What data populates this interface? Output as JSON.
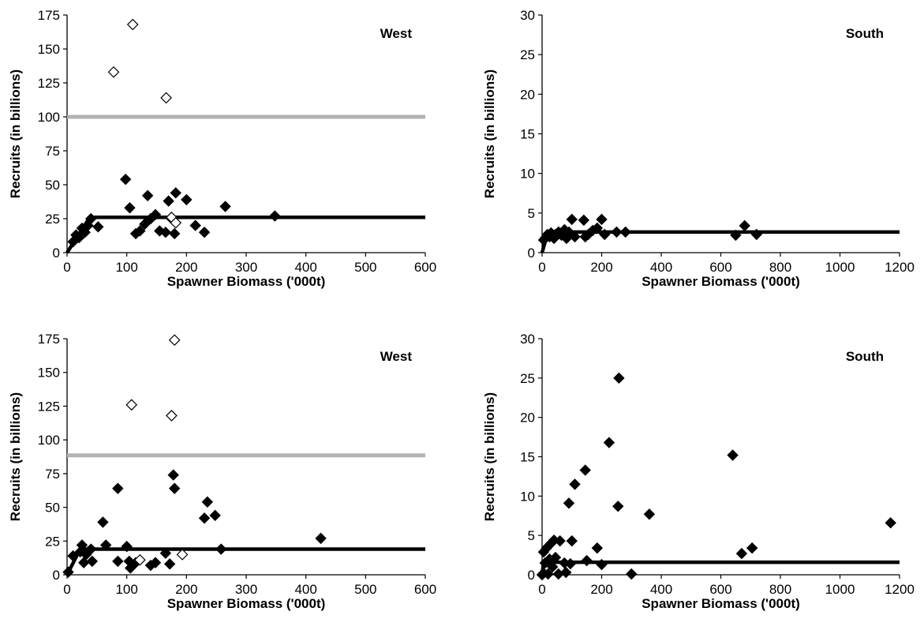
{
  "chart_data": [
    {
      "type": "scatter",
      "title": "",
      "panel_label": "West",
      "xlabel": "Spawner Biomass ('000t)",
      "ylabel": "Recruits (in billions)",
      "xlim": [
        0,
        600
      ],
      "ylim": [
        0,
        175
      ],
      "xticks": [
        "0",
        "100",
        "200",
        "300",
        "400",
        "500",
        "600"
      ],
      "yticks": [
        "0",
        "25",
        "50",
        "75",
        "100",
        "125",
        "150",
        "175"
      ],
      "grid": false,
      "series": [
        {
          "marker": "filled-diamond",
          "color": "#000000",
          "points": [
            [
              10,
              8
            ],
            [
              15,
              13
            ],
            [
              20,
              11
            ],
            [
              25,
              18
            ],
            [
              30,
              15
            ],
            [
              35,
              20
            ],
            [
              40,
              25
            ],
            [
              52,
              19
            ],
            [
              98,
              54
            ],
            [
              105,
              33
            ],
            [
              115,
              14
            ],
            [
              122,
              16
            ],
            [
              130,
              21
            ],
            [
              135,
              42
            ],
            [
              140,
              25
            ],
            [
              148,
              28
            ],
            [
              155,
              16
            ],
            [
              165,
              15
            ],
            [
              170,
              38
            ],
            [
              175,
              25
            ],
            [
              180,
              14
            ],
            [
              182,
              44
            ],
            [
              200,
              39
            ],
            [
              215,
              20
            ],
            [
              230,
              15
            ],
            [
              265,
              34
            ],
            [
              348,
              27
            ]
          ]
        },
        {
          "marker": "open-diamond",
          "color": "#000000",
          "points": [
            [
              78,
              133
            ],
            [
              110,
              168
            ],
            [
              166,
              114
            ],
            [
              175,
              26
            ],
            [
              182,
              22
            ]
          ]
        }
      ],
      "lines": [
        {
          "style": "hockey-stick",
          "color": "#000000",
          "points": [
            [
              0,
              0
            ],
            [
              38,
              26
            ],
            [
              600,
              26
            ]
          ]
        },
        {
          "style": "horizontal",
          "color": "#b3b3b3",
          "points": [
            [
              0,
              100
            ],
            [
              600,
              100
            ]
          ]
        }
      ]
    },
    {
      "type": "scatter",
      "title": "",
      "panel_label": "South",
      "xlabel": "Spawner Biomass ('000t)",
      "ylabel": "Recruits (in billions)",
      "xlim": [
        0,
        1200
      ],
      "ylim": [
        0,
        30
      ],
      "xticks": [
        "0",
        "200",
        "400",
        "600",
        "800",
        "1000",
        "1200"
      ],
      "yticks": [
        "0",
        "5",
        "10",
        "15",
        "20",
        "25",
        "30"
      ],
      "grid": false,
      "series": [
        {
          "marker": "filled-diamond",
          "color": "#000000",
          "points": [
            [
              5,
              1.6
            ],
            [
              12,
              1.9
            ],
            [
              18,
              2.3
            ],
            [
              25,
              2.0
            ],
            [
              30,
              2.5
            ],
            [
              40,
              1.8
            ],
            [
              45,
              2.3
            ],
            [
              55,
              2.6
            ],
            [
              65,
              2.2
            ],
            [
              75,
              2.9
            ],
            [
              82,
              1.8
            ],
            [
              90,
              2.6
            ],
            [
              100,
              4.2
            ],
            [
              110,
              2.0
            ],
            [
              140,
              4.1
            ],
            [
              145,
              2.0
            ],
            [
              155,
              2.3
            ],
            [
              170,
              2.8
            ],
            [
              185,
              3.1
            ],
            [
              200,
              4.2
            ],
            [
              210,
              2.3
            ],
            [
              250,
              2.6
            ],
            [
              280,
              2.6
            ],
            [
              650,
              2.2
            ],
            [
              680,
              3.4
            ],
            [
              720,
              2.3
            ]
          ]
        }
      ],
      "lines": [
        {
          "style": "hockey-stick",
          "color": "#000000",
          "points": [
            [
              0,
              0
            ],
            [
              20,
              2.6
            ],
            [
              1200,
              2.6
            ]
          ]
        }
      ]
    },
    {
      "type": "scatter",
      "title": "",
      "panel_label": "West",
      "xlabel": "Spawner Biomass ('000t)",
      "ylabel": "Recruits (in billions)",
      "xlim": [
        0,
        600
      ],
      "ylim": [
        0,
        175
      ],
      "xticks": [
        "0",
        "100",
        "200",
        "300",
        "400",
        "500",
        "600"
      ],
      "yticks": [
        "0",
        "25",
        "50",
        "75",
        "100",
        "125",
        "150",
        "175"
      ],
      "grid": false,
      "series": [
        {
          "marker": "filled-diamond",
          "color": "#000000",
          "points": [
            [
              2,
              2
            ],
            [
              10,
              14
            ],
            [
              22,
              17
            ],
            [
              25,
              22
            ],
            [
              28,
              9
            ],
            [
              32,
              15
            ],
            [
              35,
              17
            ],
            [
              40,
              19
            ],
            [
              42,
              10
            ],
            [
              60,
              39
            ],
            [
              65,
              22
            ],
            [
              85,
              10
            ],
            [
              85,
              64
            ],
            [
              100,
              21
            ],
            [
              104,
              10
            ],
            [
              106,
              5
            ],
            [
              115,
              9
            ],
            [
              140,
              7
            ],
            [
              148,
              9
            ],
            [
              165,
              16
            ],
            [
              172,
              8
            ],
            [
              178,
              74
            ],
            [
              180,
              64
            ],
            [
              230,
              42
            ],
            [
              235,
              54
            ],
            [
              248,
              44
            ],
            [
              258,
              19
            ],
            [
              425,
              27
            ]
          ]
        },
        {
          "marker": "open-diamond",
          "color": "#000000",
          "points": [
            [
              108,
              126
            ],
            [
              175,
              118
            ],
            [
              180,
              174
            ],
            [
              122,
              11
            ],
            [
              193,
              15
            ]
          ]
        }
      ],
      "lines": [
        {
          "style": "hockey-stick",
          "color": "#000000",
          "points": [
            [
              0,
              0
            ],
            [
              22,
              19
            ],
            [
              600,
              19
            ]
          ]
        },
        {
          "style": "horizontal",
          "color": "#b3b3b3",
          "points": [
            [
              0,
              88.5
            ],
            [
              600,
              88.5
            ]
          ]
        }
      ]
    },
    {
      "type": "scatter",
      "title": "",
      "panel_label": "South",
      "xlabel": "Spawner Biomass ('000t)",
      "ylabel": "Recruits (in billions)",
      "xlim": [
        0,
        1200
      ],
      "ylim": [
        0,
        30
      ],
      "xticks": [
        "0",
        "200",
        "400",
        "600",
        "800",
        "1000",
        "1200"
      ],
      "yticks": [
        "0",
        "5",
        "10",
        "15",
        "20",
        "25",
        "30"
      ],
      "grid": false,
      "series": [
        {
          "marker": "filled-diamond",
          "color": "#000000",
          "points": [
            [
              0,
              0
            ],
            [
              5,
              0.2
            ],
            [
              5,
              2.9
            ],
            [
              10,
              1.5
            ],
            [
              15,
              3.4
            ],
            [
              20,
              0.1
            ],
            [
              25,
              2.0
            ],
            [
              30,
              4.0
            ],
            [
              35,
              1.0
            ],
            [
              40,
              4.4
            ],
            [
              45,
              2.2
            ],
            [
              55,
              0.1
            ],
            [
              60,
              4.3
            ],
            [
              75,
              1.5
            ],
            [
              80,
              0.3
            ],
            [
              90,
              9.1
            ],
            [
              95,
              1.4
            ],
            [
              100,
              4.3
            ],
            [
              110,
              11.5
            ],
            [
              145,
              13.3
            ],
            [
              150,
              1.8
            ],
            [
              185,
              3.4
            ],
            [
              200,
              1.3
            ],
            [
              225,
              16.8
            ],
            [
              255,
              8.7
            ],
            [
              258,
              25.0
            ],
            [
              300,
              0.1
            ],
            [
              360,
              7.7
            ],
            [
              640,
              15.2
            ],
            [
              670,
              2.7
            ],
            [
              705,
              3.4
            ],
            [
              1170,
              6.6
            ]
          ]
        }
      ],
      "lines": [
        {
          "style": "hockey-stick",
          "color": "#000000",
          "points": [
            [
              0,
              0
            ],
            [
              5,
              1.6
            ],
            [
              1200,
              1.6
            ]
          ]
        }
      ]
    }
  ]
}
